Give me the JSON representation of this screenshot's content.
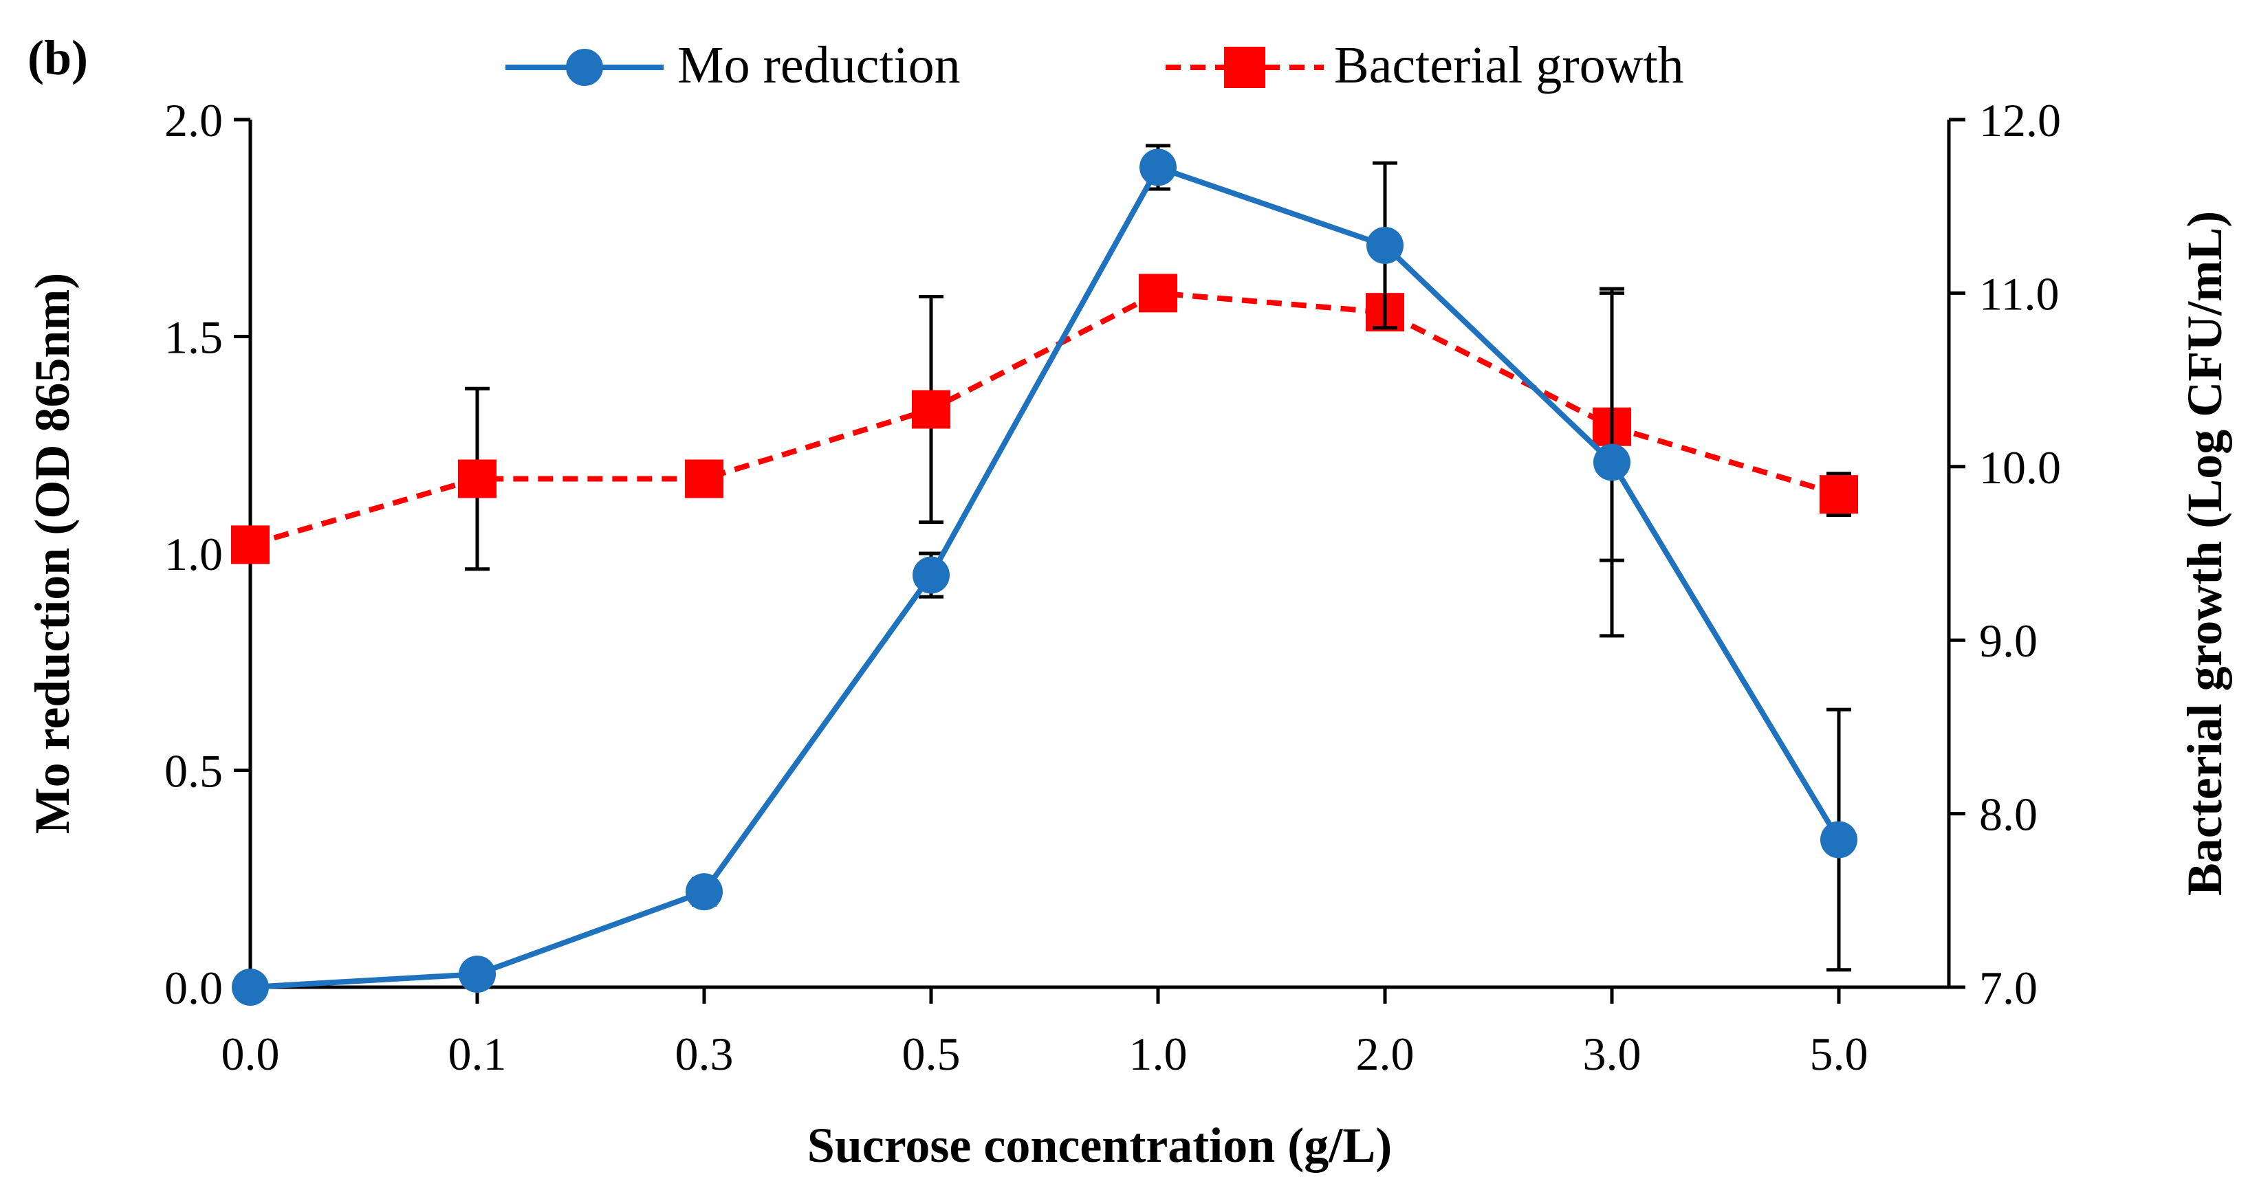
{
  "chart_data": {
    "type": "line",
    "panel_label": "(b)",
    "xlabel": "Sucrose concentration (g/L)",
    "ylabel_left": "Mo reduction (OD 865nm)",
    "ylabel_right": "Bacterial growth (Log CFU/mL)",
    "categories": [
      "0.0",
      "0.1",
      "0.3",
      "0.5",
      "1.0",
      "2.0",
      "3.0",
      "5.0"
    ],
    "ylim_left": [
      0,
      2.0
    ],
    "yticks_left": [
      "0.0",
      "0.5",
      "1.0",
      "1.5",
      "2.0"
    ],
    "ylim_right": [
      7.0,
      12.0
    ],
    "yticks_right": [
      "7.0",
      "8.0",
      "9.0",
      "10.0",
      "11.0",
      "12.0"
    ],
    "grid": false,
    "legend_position": "top",
    "series": [
      {
        "name": "Mo reduction",
        "axis": "left",
        "color": "#1f72bd",
        "line_style": "solid",
        "marker": "circle",
        "values": [
          0.0,
          0.03,
          0.22,
          0.95,
          1.89,
          1.71,
          1.21,
          0.34
        ],
        "errors": [
          0.0,
          0.01,
          0.03,
          0.05,
          0.05,
          0.19,
          0.4,
          0.3
        ]
      },
      {
        "name": "Bacterial growth",
        "axis": "right",
        "color": "#ff0000",
        "line_style": "dashed",
        "marker": "square",
        "values": [
          9.55,
          9.93,
          9.93,
          10.33,
          11.0,
          10.89,
          10.23,
          9.84
        ],
        "errors": [
          0.0,
          0.52,
          0.08,
          0.65,
          0.0,
          0.08,
          0.77,
          0.12
        ]
      }
    ]
  }
}
